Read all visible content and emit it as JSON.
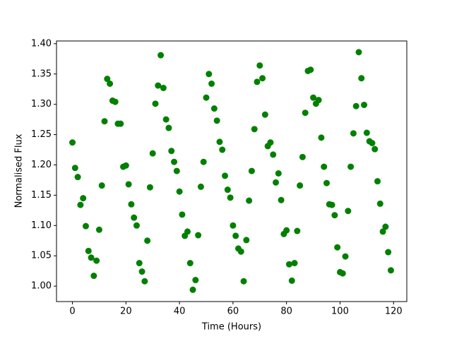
{
  "chart_data": {
    "type": "scatter",
    "xlabel": "Time (Hours)",
    "ylabel": "Normalised Flux",
    "color": "#008000",
    "x": [
      0,
      1,
      2,
      3,
      4,
      5,
      6,
      7,
      8,
      9,
      10,
      11,
      12,
      13,
      14,
      15,
      16,
      17,
      18,
      19,
      20,
      21,
      22,
      23,
      24,
      25,
      26,
      27,
      28,
      29,
      30,
      31,
      32,
      33,
      34,
      35,
      36,
      37,
      38,
      39,
      40,
      41,
      42,
      43,
      44,
      45,
      46,
      47,
      48,
      49,
      50,
      51,
      52,
      53,
      54,
      55,
      56,
      57,
      58,
      59,
      60,
      61,
      62,
      63,
      64,
      65,
      66,
      67,
      68,
      69,
      70,
      71,
      72,
      73,
      74,
      75,
      76,
      77,
      78,
      79,
      80,
      81,
      82,
      83,
      84,
      85,
      86,
      87,
      88,
      89,
      90,
      91,
      92,
      93,
      94,
      95,
      96,
      97,
      98,
      99,
      100,
      101,
      102,
      103,
      104,
      105,
      106,
      107,
      108,
      109,
      110,
      111,
      112,
      113,
      114,
      115,
      116,
      117,
      118,
      119
    ],
    "values": [
      1.237,
      1.195,
      1.18,
      1.134,
      1.145,
      1.099,
      1.058,
      1.047,
      1.017,
      1.042,
      1.093,
      1.166,
      1.272,
      1.342,
      1.334,
      1.306,
      1.304,
      1.268,
      1.268,
      1.197,
      1.199,
      1.168,
      1.135,
      1.113,
      1.1,
      1.038,
      1.024,
      1.008,
      1.075,
      1.163,
      1.219,
      1.301,
      1.331,
      1.381,
      1.327,
      1.275,
      1.261,
      1.223,
      1.205,
      1.19,
      1.156,
      1.118,
      1.083,
      1.09,
      1.038,
      0.994,
      1.01,
      1.084,
      1.164,
      1.205,
      1.311,
      1.35,
      1.334,
      1.293,
      1.273,
      1.238,
      1.225,
      1.182,
      1.159,
      1.146,
      1.1,
      1.083,
      1.062,
      1.057,
      1.008,
      1.076,
      1.141,
      1.19,
      1.259,
      1.337,
      1.364,
      1.343,
      1.283,
      1.231,
      1.237,
      1.217,
      1.171,
      1.186,
      1.142,
      1.086,
      1.092,
      1.036,
      1.009,
      1.038,
      1.091,
      1.166,
      1.213,
      1.286,
      1.355,
      1.357,
      1.311,
      1.301,
      1.307,
      1.245,
      1.197,
      1.17,
      1.135,
      1.134,
      1.117,
      1.064,
      1.023,
      1.021,
      1.049,
      1.124,
      1.197,
      1.252,
      1.297,
      1.386,
      1.343,
      1.299,
      1.253,
      1.239,
      1.236,
      1.226,
      1.173,
      1.136,
      1.09,
      1.098,
      1.056,
      1.026
    ],
    "xlim": [
      -5.95,
      124.95
    ],
    "xticks": [
      0,
      20,
      40,
      60,
      80,
      100,
      120
    ],
    "ylim": [
      0.9745,
      1.4045
    ],
    "yticks": [
      {
        "value": 1,
        "label": "1.00"
      },
      1.05,
      {
        "value": 1.1,
        "label": "1.10"
      },
      1.15,
      {
        "value": 1.2,
        "label": "1.20"
      },
      1.25,
      {
        "value": 1.3,
        "label": "1.30"
      },
      1.35,
      {
        "value": 1.4,
        "label": "1.40"
      }
    ]
  }
}
